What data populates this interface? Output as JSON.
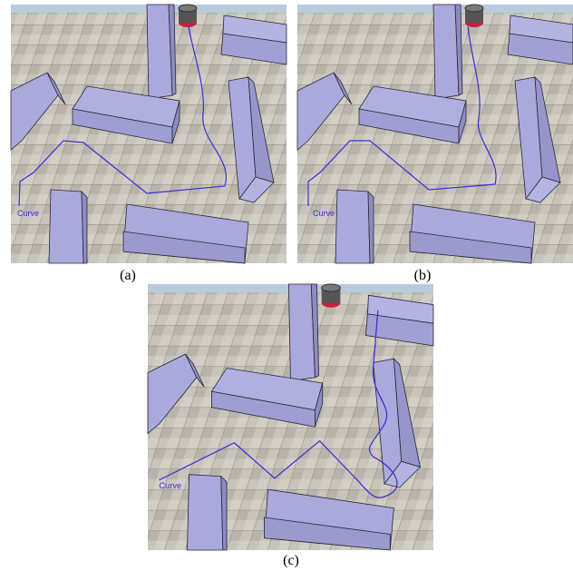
{
  "panels": [
    {
      "label": "Curve",
      "caption": "(a)"
    },
    {
      "label": "Curve",
      "caption": "(b)"
    },
    {
      "label": "Curve",
      "caption": "(c)"
    }
  ]
}
